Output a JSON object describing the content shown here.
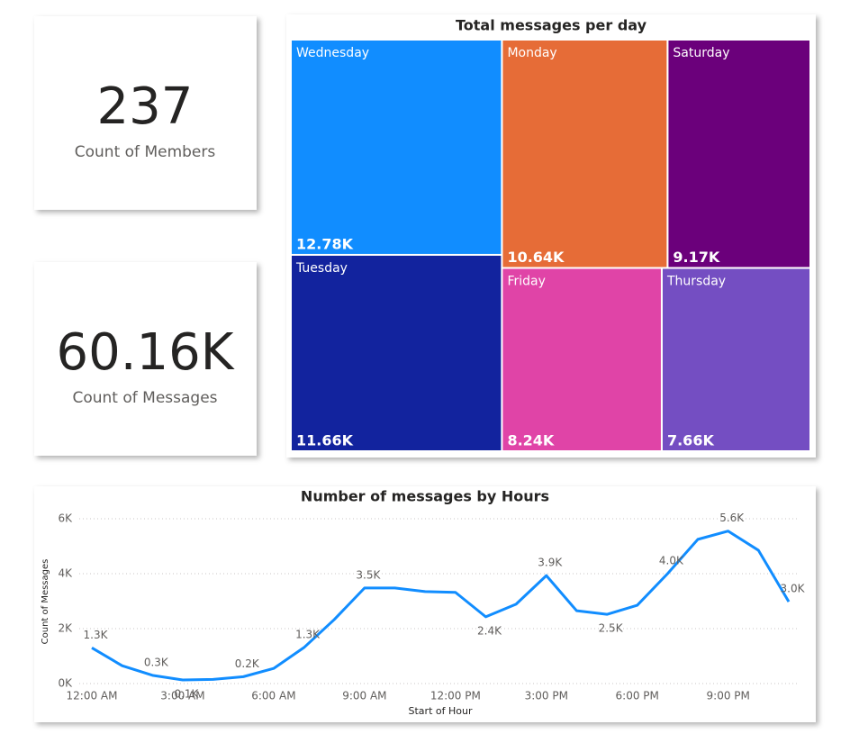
{
  "cards": [
    {
      "value": "237",
      "label": "Count of Members"
    },
    {
      "value": "60.16K",
      "label": "Count of Messages"
    }
  ],
  "chart_data": [
    {
      "type": "treemap",
      "title": "Total messages per day",
      "categories": [
        "Wednesday",
        "Tuesday",
        "Monday",
        "Saturday",
        "Friday",
        "Thursday"
      ],
      "values": [
        12780,
        11660,
        10640,
        9170,
        8240,
        7660
      ],
      "value_labels": [
        "12.78K",
        "11.66K",
        "10.64K",
        "9.17K",
        "8.24K",
        "7.66K"
      ],
      "colors": [
        "#118dff",
        "#12239e",
        "#e66c37",
        "#6b007b",
        "#e044a7",
        "#744ec2"
      ]
    },
    {
      "type": "line",
      "title": "Number of messages by Hours",
      "x_label": "Start of Hour",
      "y_label": "Count of Messages",
      "categories": [
        "12:00 AM",
        null,
        null,
        "3:00 AM",
        null,
        null,
        "6:00 AM",
        null,
        null,
        "9:00 AM",
        null,
        null,
        "12:00 PM",
        null,
        null,
        "3:00 PM",
        null,
        null,
        "6:00 PM",
        null,
        null,
        "9:00 PM",
        null,
        null
      ],
      "series": [
        {
          "name": "Count of Messages",
          "color": "#118dff",
          "values": [
            1300,
            650,
            300,
            130,
            150,
            250,
            550,
            1310,
            2330,
            3480,
            3480,
            3350,
            3320,
            2430,
            2890,
            3930,
            2650,
            2520,
            2850,
            4000,
            5250,
            5550,
            4850,
            2980
          ],
          "value_labels": [
            "1.3K",
            null,
            "0.3K",
            "0.1K",
            null,
            "0.2K",
            null,
            "1.3K",
            null,
            "3.5K",
            null,
            null,
            null,
            "2.4K",
            null,
            "3.9K",
            null,
            "2.5K",
            null,
            "4.0K",
            null,
            "5.6K",
            null,
            "3.0K"
          ]
        }
      ],
      "ylim": [
        0,
        6000
      ],
      "yticks": [
        {
          "value": 0,
          "label": "0K"
        },
        {
          "value": 2000,
          "label": "2K"
        },
        {
          "value": 4000,
          "label": "4K"
        },
        {
          "value": 6000,
          "label": "6K"
        }
      ],
      "grid": true
    }
  ]
}
